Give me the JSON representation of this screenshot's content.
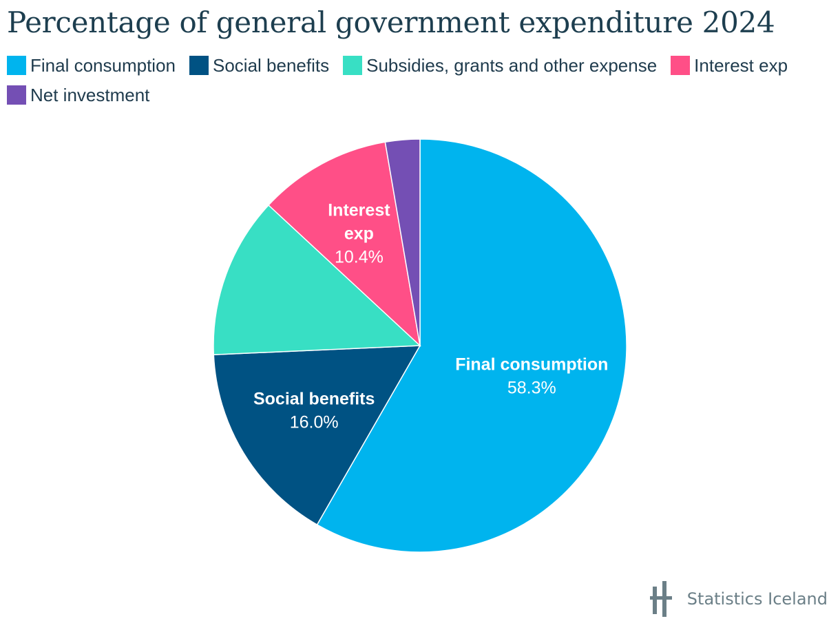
{
  "chart_data": {
    "type": "pie",
    "title": "Percentage of general government expenditure 2024",
    "start_angle_deg": 0,
    "direction": "clockwise",
    "slices": [
      {
        "name": "Final consumption",
        "value": 58.3,
        "value_label": "58.3%",
        "color": "#00b4ee",
        "show_label": true,
        "label_lines": [
          "Final consumption"
        ]
      },
      {
        "name": "Social benefits",
        "value": 16.0,
        "value_label": "16.0%",
        "color": "#005283",
        "show_label": true,
        "label_lines": [
          "Social benefits"
        ]
      },
      {
        "name": "Subsidies, grants and other expense",
        "value": 12.6,
        "value_label": "",
        "color": "#38dfc4",
        "show_label": false,
        "label_lines": []
      },
      {
        "name": "Interest exp",
        "value": 10.4,
        "value_label": "10.4%",
        "color": "#ff4f87",
        "show_label": true,
        "label_lines": [
          "Interest",
          "exp"
        ]
      },
      {
        "name": "Net investment",
        "value": 2.7,
        "value_label": "",
        "color": "#744fb4",
        "show_label": false,
        "label_lines": []
      }
    ],
    "legend_position": "top-left"
  },
  "branding": {
    "text": "Statistics Iceland",
    "logo_icon": "statistics-iceland-logo",
    "color": "#6b7f87"
  }
}
